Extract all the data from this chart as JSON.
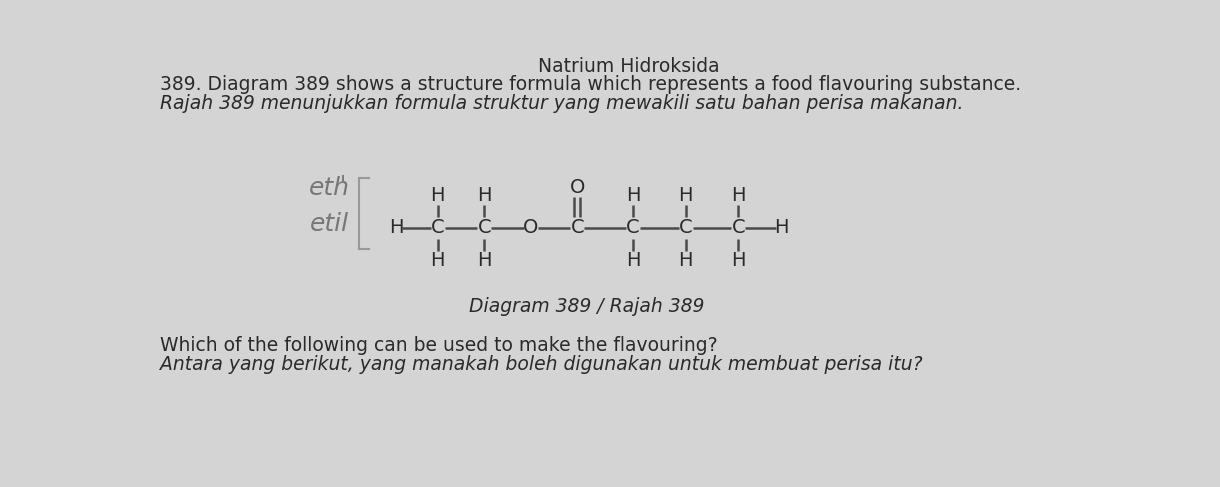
{
  "background_color": "#d4d4d4",
  "title_line1": "389. Diagram 389 shows a structure formula which represents a food flavouring substance.",
  "title_line2": "Rajah 389 menunjukkan formula struktur yang mewakili satu bahan perisa makanan.",
  "diagram_label": "Diagram 389 / Rajah 389",
  "question_line1": "Which of the following can be used to make the flavouring?",
  "question_line2": "Antara yang berikut, yang manakah boleh digunakan untuk membuat perisa itu?",
  "header_text": "Natrium Hidroksida",
  "annotation_eth": "eth",
  "annotation_etil": "etil",
  "text_color": "#2a2a2a",
  "bond_color": "#4a4a4a",
  "atom_color": "#2a2a2a",
  "title_fontsize": 13.5,
  "body_fontsize": 13.5,
  "diagram_fontsize": 14,
  "label_fontsize": 13.5,
  "annot_fontsize": 18
}
